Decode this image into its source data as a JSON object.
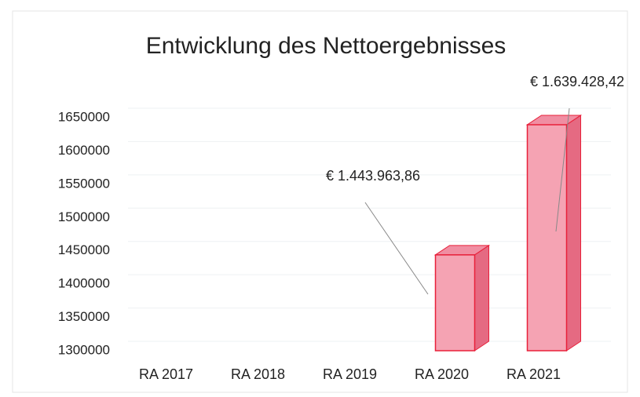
{
  "chart_data": {
    "type": "bar3d",
    "title": "Entwicklung des Nettoergebnisses",
    "categories": [
      "RA 2017",
      "RA 2018",
      "RA 2019",
      "RA 2020",
      "RA 2021"
    ],
    "values": [
      null,
      null,
      null,
      1443963.86,
      1639428.42
    ],
    "value_labels": [
      null,
      null,
      null,
      "€ 1.443.963,86",
      "€ 1.639.428,42"
    ],
    "color": "#f5a3b3",
    "ylim": [
      1300000,
      1650000
    ],
    "yticks": [
      1300000,
      1350000,
      1400000,
      1450000,
      1500000,
      1550000,
      1600000,
      1650000
    ],
    "grid": true
  }
}
